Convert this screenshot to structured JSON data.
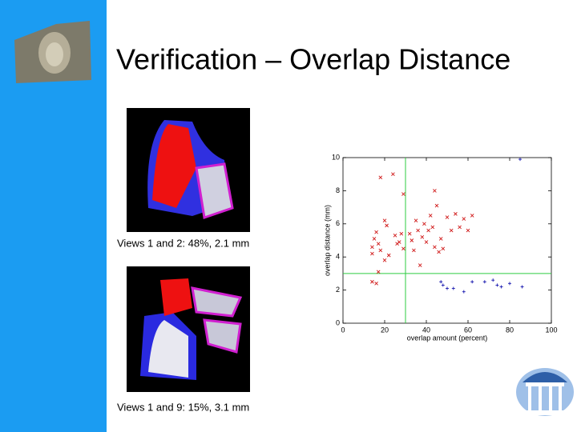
{
  "slide": {
    "title": "Verification – Overlap Distance",
    "captions": [
      "Views 1 and 2: 48%, 2.1 mm",
      "Views 1 and 9: 15%, 3.1 mm"
    ]
  },
  "chart_data": {
    "type": "scatter",
    "xlabel": "overlap amount (percent)",
    "ylabel": "overlap distance (mm)",
    "xlim": [
      0,
      100
    ],
    "ylim": [
      0,
      10
    ],
    "xticks": [
      0,
      20,
      40,
      60,
      80,
      100
    ],
    "yticks": [
      0,
      2,
      4,
      6,
      8,
      10
    ],
    "reference_lines": {
      "x": 30,
      "y": 3
    },
    "reference_color": "#2ecc40",
    "series": [
      {
        "color": "#d01818",
        "marker": "x",
        "x": [
          14,
          14,
          15,
          16,
          17,
          17,
          18,
          16,
          20,
          21,
          20,
          22,
          25,
          26,
          27,
          28,
          29,
          24,
          18,
          29,
          32,
          33,
          34,
          35,
          36,
          37,
          38,
          39,
          40,
          41,
          42,
          43,
          44,
          45,
          44,
          46,
          47,
          48,
          50,
          52,
          54,
          56,
          58,
          60,
          62,
          14
        ],
        "y": [
          4.2,
          4.6,
          5.1,
          5.5,
          4.8,
          3.1,
          4.4,
          2.4,
          3.8,
          5.9,
          6.2,
          4.1,
          5.3,
          4.8,
          4.9,
          5.4,
          4.5,
          9.0,
          8.8,
          7.8,
          5.4,
          5.0,
          4.4,
          6.2,
          5.6,
          3.5,
          5.2,
          6.0,
          4.9,
          5.6,
          6.5,
          5.8,
          4.6,
          7.1,
          8.0,
          4.3,
          5.1,
          4.5,
          6.4,
          5.6,
          6.6,
          5.8,
          6.3,
          5.6,
          6.5,
          2.5
        ]
      },
      {
        "color": "#1a1ab0",
        "marker": "+",
        "x": [
          47,
          48,
          50,
          53,
          58,
          62,
          68,
          72,
          74,
          76,
          80,
          86,
          85
        ],
        "y": [
          2.5,
          2.3,
          2.1,
          2.1,
          1.9,
          2.5,
          2.5,
          2.6,
          2.3,
          2.2,
          2.4,
          2.2,
          9.9
        ]
      }
    ]
  }
}
